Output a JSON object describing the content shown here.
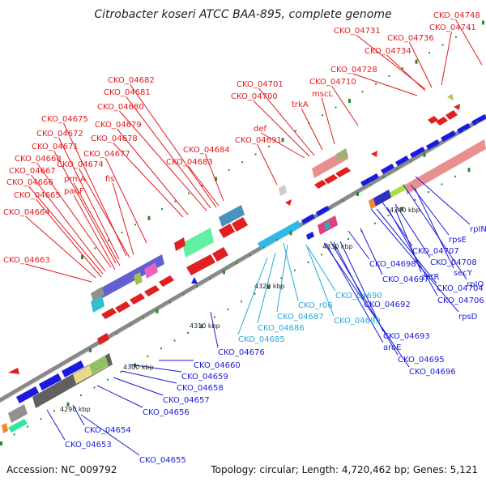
{
  "title": "Citrobacter koseri ATCC BAA-895, complete genome",
  "footer": {
    "accession": "Accession: NC_009792",
    "summary": "Topology: circular; Length: 4,720,462 bp; Genes: 5,121"
  },
  "colors": {
    "forward_label": "#e41a1c",
    "reverse_label": "#1a1ad8",
    "rna_label": "#29a8d8",
    "backbone": "#888888",
    "tick": "#2a8a2a"
  },
  "scale_labels": [
    "4290 kbp",
    "4300 kbp",
    "4310 kbp",
    "4320 kbp",
    "4330 kbp",
    "4340 kbp"
  ],
  "labels_forward": [
    "CKO_04748",
    "CKO_04741",
    "CKO_04731",
    "CKO_04736",
    "CKO_04734",
    "CKO_04728",
    "CKO_04710",
    "mscL",
    "CKO_04701",
    "CKO_04700",
    "trkA",
    "def",
    "CKO_04691",
    "CKO_04682",
    "CKO_04681",
    "CKO_04680",
    "CKO_04679",
    "CKO_04678",
    "CKO_04684",
    "CKO_04683",
    "CKO_04675",
    "CKO_04672",
    "CKO_04671",
    "CKO_04677",
    "CKO_04668",
    "CKO_04674",
    "CKO_04667",
    "prmA",
    "fis",
    "CKO_04666",
    "panF",
    "CKO_04665",
    "CKO_04664",
    "CKO_04663"
  ],
  "labels_reverse": [
    "rpIN",
    "rpsE",
    "CKO_04707",
    "CKO_04708",
    "secY",
    "zntR",
    "rpIO",
    "CKO_04698",
    "CKO_04697",
    "CKO_04704",
    "CKO_04706",
    "rpsD",
    "CKO_04692",
    "CKO_04693",
    "aroE",
    "CKO_04695",
    "CKO_04696",
    "CKO_04676",
    "CKO_04660",
    "CKO_04659",
    "CKO_04658",
    "CKO_04657",
    "CKO_04656",
    "CKO_04654",
    "CKO_04653",
    "CKO_04655"
  ],
  "labels_rna": [
    "CKO_04690",
    "CKO_r06",
    "CKO_04689",
    "CKO_04687",
    "CKO_04686",
    "CKO_04685"
  ]
}
